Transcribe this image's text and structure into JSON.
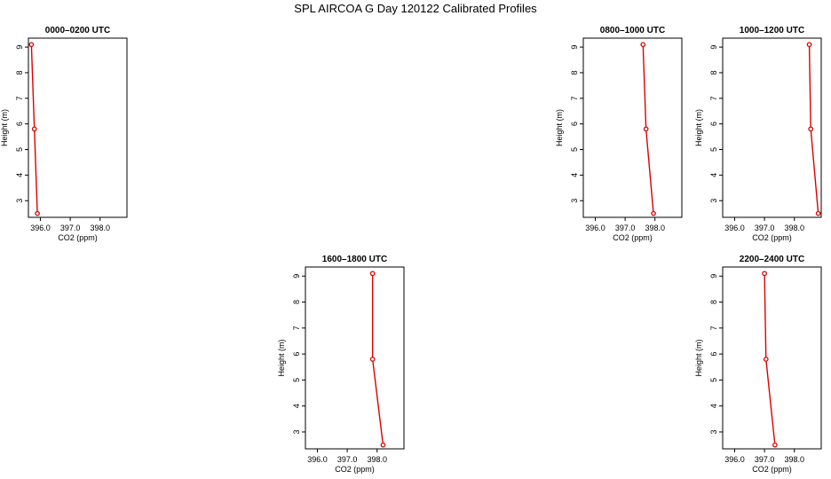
{
  "figure": {
    "title": "SPL AIRCOA G  Day 120122  Calibrated Profiles"
  },
  "chart_data": [
    {
      "type": "line",
      "title": "0000–0200 UTC",
      "xlabel": "CO2 (ppm)",
      "ylabel": "Height (m)",
      "xlim": [
        395.6,
        398.9
      ],
      "ylim": [
        2.35,
        9.35
      ],
      "xticks": [
        "396.0",
        "397.0",
        "398.0"
      ],
      "yticks": [
        "3",
        "4",
        "5",
        "6",
        "7",
        "8",
        "9"
      ],
      "grid": false,
      "series": [
        {
          "x": [
            395.7,
            395.8,
            395.9
          ],
          "y": [
            9.1,
            5.8,
            2.5
          ]
        }
      ],
      "color": "#dd0000"
    },
    {
      "type": "line",
      "title": "0800–1000 UTC",
      "xlabel": "CO2 (ppm)",
      "ylabel": "Height (m)",
      "xlim": [
        395.6,
        398.9
      ],
      "ylim": [
        2.35,
        9.35
      ],
      "xticks": [
        "396.0",
        "397.0",
        "398.0"
      ],
      "yticks": [
        "3",
        "4",
        "5",
        "6",
        "7",
        "8",
        "9"
      ],
      "grid": false,
      "series": [
        {
          "x": [
            397.6,
            397.7,
            397.95
          ],
          "y": [
            9.1,
            5.8,
            2.5
          ]
        }
      ],
      "color": "#dd0000"
    },
    {
      "type": "line",
      "title": "1000–1200 UTC",
      "xlabel": "CO2 (ppm)",
      "ylabel": "Height (m)",
      "xlim": [
        395.6,
        398.9
      ],
      "ylim": [
        2.35,
        9.35
      ],
      "xticks": [
        "396.0",
        "397.0",
        "398.0"
      ],
      "yticks": [
        "3",
        "4",
        "5",
        "6",
        "7",
        "8",
        "9"
      ],
      "grid": false,
      "series": [
        {
          "x": [
            398.5,
            398.55,
            398.8
          ],
          "y": [
            9.1,
            5.8,
            2.5
          ]
        }
      ],
      "color": "#dd0000"
    },
    {
      "type": "line",
      "title": "1600–1800 UTC",
      "xlabel": "CO2 (ppm)",
      "ylabel": "Height (m)",
      "xlim": [
        395.6,
        398.9
      ],
      "ylim": [
        2.35,
        9.35
      ],
      "xticks": [
        "396.0",
        "397.0",
        "398.0"
      ],
      "yticks": [
        "3",
        "4",
        "5",
        "6",
        "7",
        "8",
        "9"
      ],
      "grid": false,
      "series": [
        {
          "x": [
            397.85,
            397.85,
            398.2
          ],
          "y": [
            9.1,
            5.8,
            2.5
          ]
        }
      ],
      "color": "#dd0000"
    },
    {
      "type": "line",
      "title": "2200–2400 UTC",
      "xlabel": "CO2 (ppm)",
      "ylabel": "Height (m)",
      "xlim": [
        395.6,
        398.9
      ],
      "ylim": [
        2.35,
        9.35
      ],
      "xticks": [
        "396.0",
        "397.0",
        "398.0"
      ],
      "yticks": [
        "3",
        "4",
        "5",
        "6",
        "7",
        "8",
        "9"
      ],
      "grid": false,
      "series": [
        {
          "x": [
            397.0,
            397.05,
            397.35
          ],
          "y": [
            9.1,
            5.8,
            2.5
          ]
        }
      ],
      "color": "#dd0000"
    }
  ]
}
